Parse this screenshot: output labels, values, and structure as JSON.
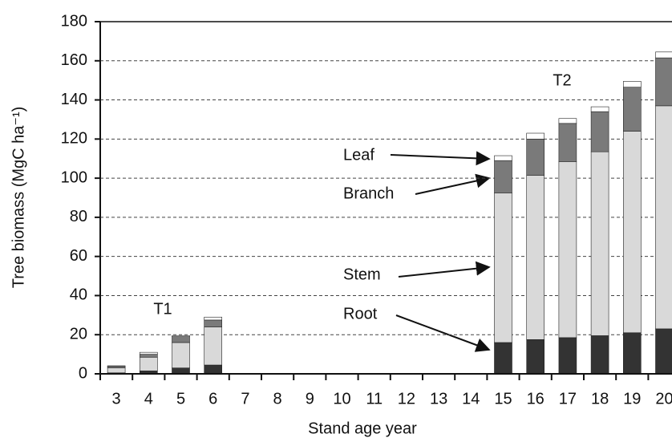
{
  "chart_data": {
    "type": "stacked-bar",
    "xlabel": "Stand age  year",
    "ylabel": "Tree biomass (MgC ha⁻¹)",
    "annotations": [
      "T1",
      "T2"
    ],
    "categories": [
      "3",
      "4",
      "5",
      "6",
      "7",
      "8",
      "9",
      "10",
      "11",
      "12",
      "13",
      "14",
      "15",
      "16",
      "17",
      "18",
      "19",
      "20"
    ],
    "series": [
      {
        "name": "Root",
        "color": "#333333",
        "values": [
          0.5,
          1.5,
          3,
          4.5,
          null,
          null,
          null,
          null,
          null,
          null,
          null,
          null,
          16,
          17.5,
          18.5,
          19.5,
          21,
          23
        ]
      },
      {
        "name": "Stem",
        "color": "#d9d9d9",
        "values": [
          2.5,
          7,
          13,
          19.5,
          null,
          null,
          null,
          null,
          null,
          null,
          null,
          null,
          76.5,
          84,
          90,
          94,
          103,
          114
        ]
      },
      {
        "name": "Branch",
        "color": "#7a7a7a",
        "values": [
          0.8,
          1.5,
          3,
          3.5,
          null,
          null,
          null,
          null,
          null,
          null,
          null,
          null,
          16.5,
          18.5,
          19.5,
          20.5,
          22.5,
          24.5
        ]
      },
      {
        "name": "Leaf",
        "color": "#ffffff",
        "values": [
          0.3,
          1,
          0.5,
          1.5,
          null,
          null,
          null,
          null,
          null,
          null,
          null,
          null,
          2.5,
          3,
          2.5,
          2.5,
          3,
          3
        ]
      }
    ],
    "ylim": [
      0,
      180
    ],
    "yticks": [
      0,
      20,
      40,
      60,
      80,
      100,
      120,
      140,
      160,
      180
    ],
    "grid": true
  }
}
